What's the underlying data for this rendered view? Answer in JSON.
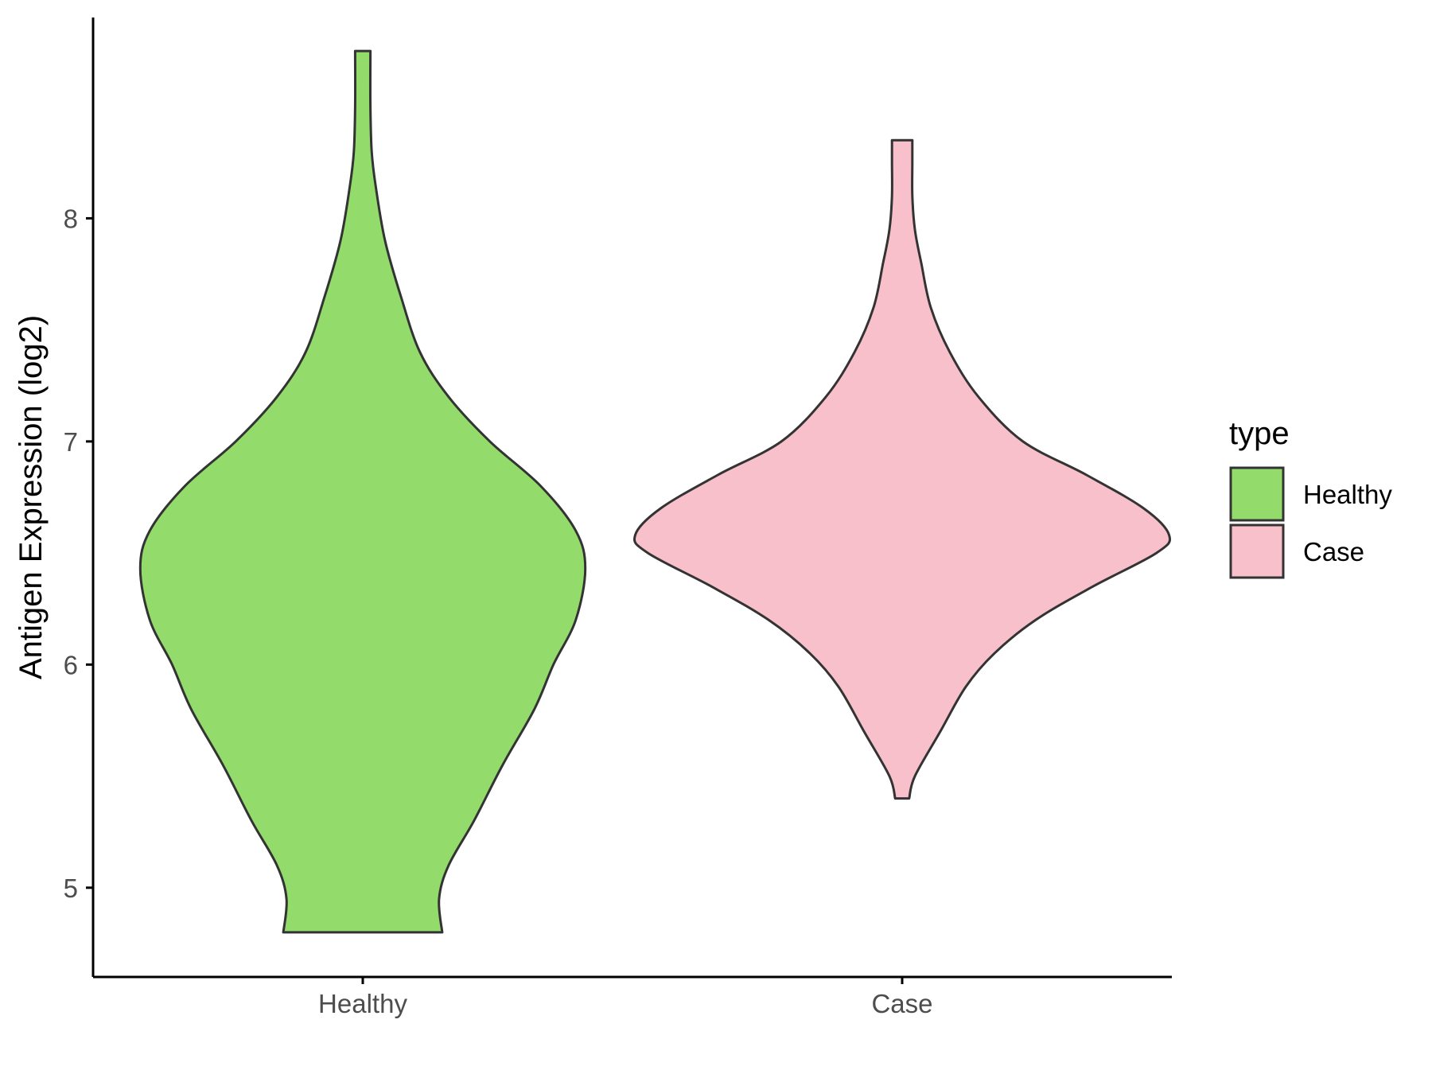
{
  "chart_data": {
    "type": "violin",
    "title": "",
    "xlabel": "",
    "ylabel": "Antigen Expression (log2)",
    "categories": [
      "Healthy",
      "Case"
    ],
    "ylim": [
      4.6,
      8.9
    ],
    "yticks": [
      5,
      6,
      7,
      8
    ],
    "grid": false,
    "legend": {
      "title": "type",
      "position": "right",
      "entries": [
        {
          "label": "Healthy",
          "color": "#93dc6b"
        },
        {
          "label": "Case",
          "color": "#f8c0cb"
        }
      ]
    },
    "outline_color": "#333333",
    "series": [
      {
        "name": "Healthy",
        "color": "#93dc6b",
        "min": 4.8,
        "max": 8.75,
        "density": [
          [
            4.8,
            0.125
          ],
          [
            4.95,
            0.12
          ],
          [
            5.1,
            0.135
          ],
          [
            5.3,
            0.175
          ],
          [
            5.55,
            0.22
          ],
          [
            5.8,
            0.27
          ],
          [
            6.0,
            0.3
          ],
          [
            6.2,
            0.335
          ],
          [
            6.43,
            0.35
          ],
          [
            6.6,
            0.335
          ],
          [
            6.8,
            0.28
          ],
          [
            7.0,
            0.2
          ],
          [
            7.2,
            0.135
          ],
          [
            7.4,
            0.09
          ],
          [
            7.65,
            0.06
          ],
          [
            7.9,
            0.035
          ],
          [
            8.15,
            0.02
          ],
          [
            8.3,
            0.014
          ],
          [
            8.5,
            0.012
          ],
          [
            8.75,
            0.012
          ]
        ]
      },
      {
        "name": "Case",
        "color": "#f8c0cb",
        "min": 5.4,
        "max": 8.35,
        "density": [
          [
            5.4,
            0.011
          ],
          [
            5.5,
            0.02
          ],
          [
            5.7,
            0.06
          ],
          [
            5.9,
            0.1
          ],
          [
            6.05,
            0.145
          ],
          [
            6.2,
            0.21
          ],
          [
            6.35,
            0.3
          ],
          [
            6.5,
            0.4
          ],
          [
            6.58,
            0.42
          ],
          [
            6.7,
            0.38
          ],
          [
            6.85,
            0.29
          ],
          [
            7.0,
            0.19
          ],
          [
            7.2,
            0.12
          ],
          [
            7.4,
            0.075
          ],
          [
            7.6,
            0.045
          ],
          [
            7.8,
            0.03
          ],
          [
            7.95,
            0.02
          ],
          [
            8.1,
            0.016
          ],
          [
            8.25,
            0.016
          ],
          [
            8.35,
            0.016
          ]
        ]
      }
    ]
  }
}
